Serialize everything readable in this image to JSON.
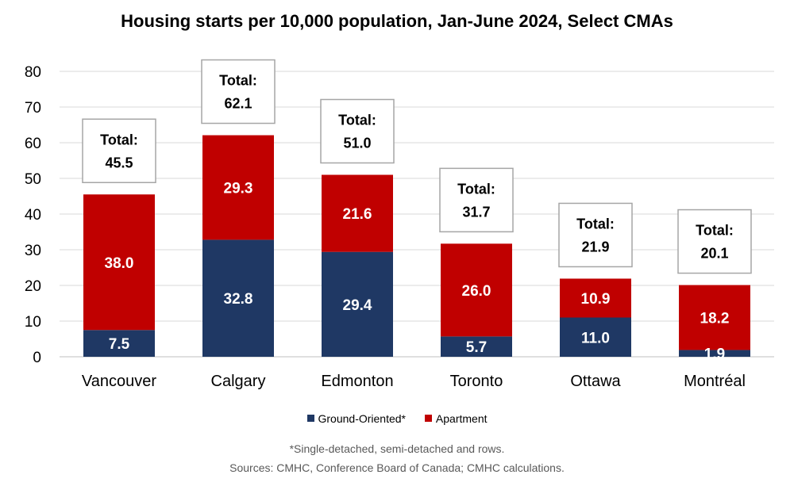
{
  "chart_data": {
    "type": "bar",
    "stacked": true,
    "title": "Housing starts per 10,000 population, Jan-June 2024, Select CMAs",
    "categories": [
      "Vancouver",
      "Calgary",
      "Edmonton",
      "Toronto",
      "Ottawa",
      "Montréal"
    ],
    "series": [
      {
        "name": "Ground-Oriented*",
        "color": "#1f3864",
        "values": [
          7.5,
          32.8,
          29.4,
          5.7,
          11.0,
          1.9
        ],
        "labels": [
          "7.5",
          "32.8",
          "29.4",
          "5.7",
          "11.0",
          "1.9"
        ]
      },
      {
        "name": "Apartment",
        "color": "#c00000",
        "values": [
          38.0,
          29.3,
          21.6,
          26.0,
          10.9,
          18.2
        ],
        "labels": [
          "38.0",
          "29.3",
          "21.6",
          "26.0",
          "10.9",
          "18.2"
        ]
      }
    ],
    "totals": [
      "45.5",
      "62.1",
      "51.0",
      "31.7",
      "21.9",
      "20.1"
    ],
    "total_label": "Total:",
    "ylim": [
      0,
      80
    ],
    "yticks": [
      0,
      10,
      20,
      30,
      40,
      50,
      60,
      70,
      80
    ],
    "grid": true,
    "legend_position": "bottom"
  },
  "footnote": {
    "line1": "*Single-detached, semi-detached and rows.",
    "line2": "Sources: CMHC, Conference Board of Canada; CMHC calculations."
  }
}
